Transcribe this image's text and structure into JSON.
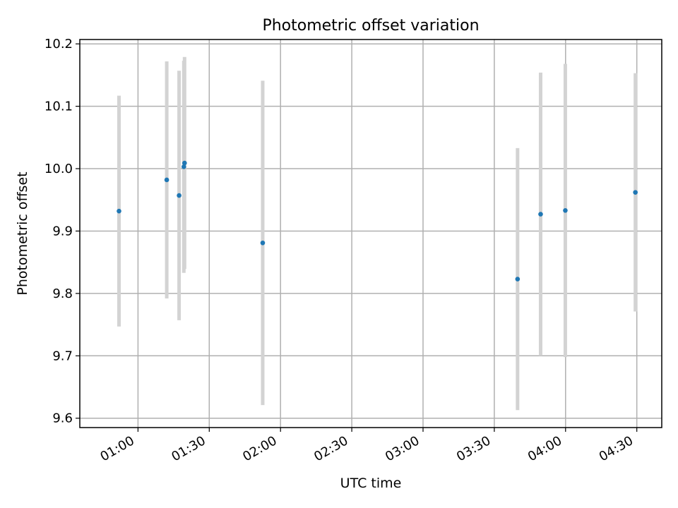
{
  "chart_data": {
    "type": "scatter",
    "title": "Photometric offset variation",
    "xlabel": "UTC time",
    "ylabel": "Photometric offset",
    "x_ticks": [
      "01:00",
      "01:30",
      "02:00",
      "02:30",
      "03:00",
      "03:30",
      "04:00",
      "04:30"
    ],
    "x_tick_minutes": [
      60,
      90,
      120,
      150,
      180,
      210,
      240,
      270
    ],
    "xlim_minutes": [
      35.5,
      280.5
    ],
    "y_ticks": [
      "9.6",
      "9.7",
      "9.8",
      "9.9",
      "10.0",
      "10.1",
      "10.2"
    ],
    "y_tick_values": [
      9.6,
      9.7,
      9.8,
      9.9,
      10.0,
      10.1,
      10.2
    ],
    "ylim": [
      9.585,
      10.207
    ],
    "grid": true,
    "marker_color": "#1f77b4",
    "errorbar_color": "#d3d3d3",
    "points": [
      {
        "time": "00:52",
        "minutes": 52.0,
        "y": 9.932,
        "err": 0.185
      },
      {
        "time": "01:12",
        "minutes": 72.1,
        "y": 9.982,
        "err": 0.19
      },
      {
        "time": "01:18",
        "minutes": 77.3,
        "y": 9.957,
        "err": 0.2
      },
      {
        "time": "01:20",
        "minutes": 79.3,
        "y": 10.003,
        "err": 0.17
      },
      {
        "time": "01:20",
        "minutes": 79.6,
        "y": 10.009,
        "err": 0.17
      },
      {
        "time": "01:52",
        "minutes": 112.5,
        "y": 9.881,
        "err": 0.26
      },
      {
        "time": "03:40",
        "minutes": 219.8,
        "y": 9.823,
        "err": 0.21
      },
      {
        "time": "03:50",
        "minutes": 229.5,
        "y": 9.927,
        "err": 0.227
      },
      {
        "time": "03:59",
        "minutes": 239.9,
        "y": 9.933,
        "err": 0.235
      },
      {
        "time": "04:29",
        "minutes": 269.4,
        "y": 9.962,
        "err": 0.191
      }
    ]
  }
}
